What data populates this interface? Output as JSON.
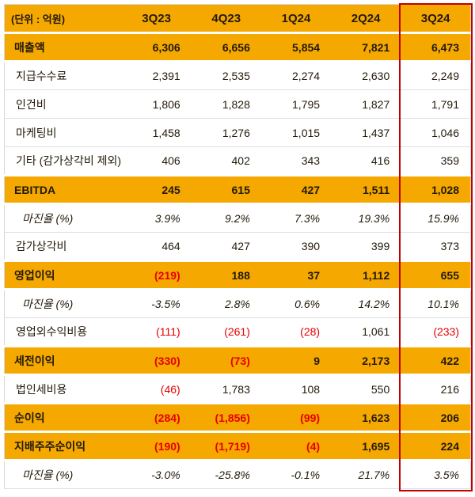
{
  "chart_data": {
    "type": "table",
    "unit_label": "(단위 : 억원)",
    "columns": [
      "3Q23",
      "4Q23",
      "1Q24",
      "2Q24",
      "3Q24"
    ],
    "highlighted_column": "3Q24",
    "colors": {
      "header_bg": "#F5A800",
      "highlight_row_bg": "#F5A800",
      "negative_text": "#E60000",
      "text": "#231A0A",
      "highlight_column_border": "#C00000",
      "row_divider": "#DEDEDE"
    },
    "rows": [
      {
        "label": "매출액",
        "style": "highlight",
        "values": [
          "6,306",
          "6,656",
          "5,854",
          "7,821",
          "6,473"
        ]
      },
      {
        "label": "지급수수료",
        "style": "sub",
        "values": [
          "2,391",
          "2,535",
          "2,274",
          "2,630",
          "2,249"
        ]
      },
      {
        "label": "인건비",
        "style": "sub",
        "values": [
          "1,806",
          "1,828",
          "1,795",
          "1,827",
          "1,791"
        ]
      },
      {
        "label": "마케팅비",
        "style": "sub",
        "values": [
          "1,458",
          "1,276",
          "1,015",
          "1,437",
          "1,046"
        ]
      },
      {
        "label": "기타 (감가상각비 제외)",
        "style": "sub",
        "values": [
          "406",
          "402",
          "343",
          "416",
          "359"
        ]
      },
      {
        "label": "EBITDA",
        "style": "highlight",
        "values": [
          "245",
          "615",
          "427",
          "1,511",
          "1,028"
        ]
      },
      {
        "label": "마진율 (%)",
        "style": "margin",
        "values": [
          "3.9%",
          "9.2%",
          "7.3%",
          "19.3%",
          "15.9%"
        ]
      },
      {
        "label": "감가상각비",
        "style": "sub",
        "values": [
          "464",
          "427",
          "390",
          "399",
          "373"
        ]
      },
      {
        "label": "영업이익",
        "style": "highlight",
        "values": [
          "(219)",
          "188",
          "37",
          "1,112",
          "655"
        ]
      },
      {
        "label": "마진율 (%)",
        "style": "margin",
        "values": [
          "-3.5%",
          "2.8%",
          "0.6%",
          "14.2%",
          "10.1%"
        ]
      },
      {
        "label": "영업외수익비용",
        "style": "sub",
        "values": [
          "(111)",
          "(261)",
          "(28)",
          "1,061",
          "(233)"
        ]
      },
      {
        "label": "세전이익",
        "style": "highlight",
        "values": [
          "(330)",
          "(73)",
          "9",
          "2,173",
          "422"
        ]
      },
      {
        "label": "법인세비용",
        "style": "sub",
        "values": [
          "(46)",
          "1,783",
          "108",
          "550",
          "216"
        ]
      },
      {
        "label": "순이익",
        "style": "highlight",
        "values": [
          "(284)",
          "(1,856)",
          "(99)",
          "1,623",
          "206"
        ]
      },
      {
        "label": "지배주주순이익",
        "style": "highlight",
        "values": [
          "(190)",
          "(1,719)",
          "(4)",
          "1,695",
          "224"
        ]
      },
      {
        "label": "마진율 (%)",
        "style": "margin",
        "values": [
          "-3.0%",
          "-25.8%",
          "-0.1%",
          "21.7%",
          "3.5%"
        ]
      }
    ]
  }
}
